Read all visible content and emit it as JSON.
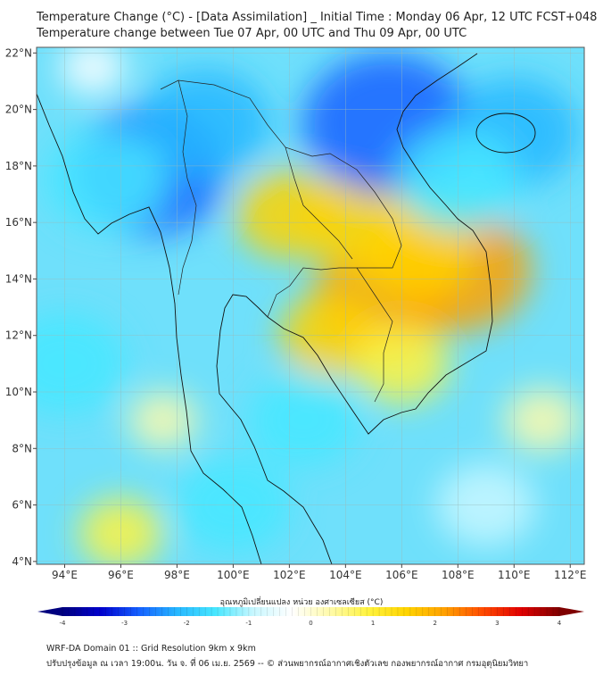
{
  "header": {
    "title": "Temperature Change (°C) - [Data Assimilation] _ Initial Time : Monday 06 Apr, 12 UTC FCST+048",
    "subtitle": "Temperature change between Tue 07 Apr, 00 UTC and Thu 09 Apr, 00 UTC"
  },
  "map": {
    "lon_labels": [
      "94°E",
      "96°E",
      "98°E",
      "100°E",
      "102°E",
      "104°E",
      "106°E",
      "108°E",
      "110°E",
      "112°E"
    ],
    "lon_values": [
      94,
      96,
      98,
      100,
      102,
      104,
      106,
      108,
      110,
      112
    ],
    "lat_labels": [
      "4°N",
      "6°N",
      "8°N",
      "10°N",
      "12°N",
      "14°N",
      "16°N",
      "18°N",
      "20°N",
      "22°N"
    ],
    "lat_values": [
      4,
      6,
      8,
      10,
      12,
      14,
      16,
      18,
      20,
      22
    ],
    "lon_range": [
      93,
      112.5
    ],
    "lat_range": [
      3.9,
      22.2
    ],
    "anomalies": [
      {
        "lon": 105.3,
        "lat": 13.3,
        "value": 2.2
      },
      {
        "lon": 108.0,
        "lat": 14.3,
        "value": 2.4
      },
      {
        "lon": 102.0,
        "lat": 16.3,
        "value": 1.4
      },
      {
        "lon": 104.5,
        "lat": 16.0,
        "value": 1.6
      },
      {
        "lon": 106.5,
        "lat": 15.0,
        "value": 1.7
      },
      {
        "lon": 103.5,
        "lat": 12.0,
        "value": 1.3
      },
      {
        "lon": 106.0,
        "lat": 11.0,
        "value": 1.1
      },
      {
        "lon": 111.0,
        "lat": 9.0,
        "value": 0.6
      },
      {
        "lon": 96.0,
        "lat": 5.0,
        "value": 0.8
      },
      {
        "lon": 97.5,
        "lat": 9.0,
        "value": 0.4
      },
      {
        "lon": 105.5,
        "lat": 19.5,
        "value": -3.0
      },
      {
        "lon": 97.0,
        "lat": 17.8,
        "value": -2.6
      },
      {
        "lon": 99.0,
        "lat": 19.5,
        "value": -2.0
      },
      {
        "lon": 110.0,
        "lat": 19.2,
        "value": -2.0
      },
      {
        "lon": 95.5,
        "lat": 17.5,
        "value": -1.8
      },
      {
        "lon": 108.0,
        "lat": 17.5,
        "value": -1.8
      },
      {
        "lon": 94.0,
        "lat": 11.0,
        "value": -1.8
      },
      {
        "lon": 102.5,
        "lat": 9.0,
        "value": -1.5
      },
      {
        "lon": 100.0,
        "lat": 6.0,
        "value": -1.6
      },
      {
        "lon": 109.0,
        "lat": 6.0,
        "value": -1.2
      },
      {
        "lon": 95.0,
        "lat": 21.5,
        "value": -0.3
      }
    ]
  },
  "colorbar": {
    "title": "อุณหภูมิเปลี่ยนแปลง หน่วย องศาเซลเซียส (°C)",
    "ticks": [
      "-4",
      "-3",
      "-2",
      "-1",
      "0",
      "1",
      "2",
      "3",
      "4"
    ],
    "tick_values": [
      -4,
      -3,
      -2,
      -1,
      0,
      1,
      2,
      3,
      4
    ],
    "range": [
      -4,
      4
    ],
    "colors": [
      "#00007f",
      "#0000cd",
      "#1560ff",
      "#27b7ff",
      "#47e7ff",
      "#c8f7ff",
      "#ffffff",
      "#fffaaa",
      "#fff33f",
      "#ffd400",
      "#ffa000",
      "#ff4a00",
      "#e00000",
      "#7f0000"
    ]
  },
  "footer": {
    "line1": "WRF-DA Domain 01 :: Grid Resolution 9km x 9km",
    "line2": "ปรับปรุงข้อมูล ณ เวลา 19:00น. วัน จ. ที่ 06 เม.ย. 2569 -- © ส่วนพยากรณ์อากาศเชิงตัวเลข กองพยากรณ์อากาศ กรมอุตุนิยมวิทยา"
  }
}
